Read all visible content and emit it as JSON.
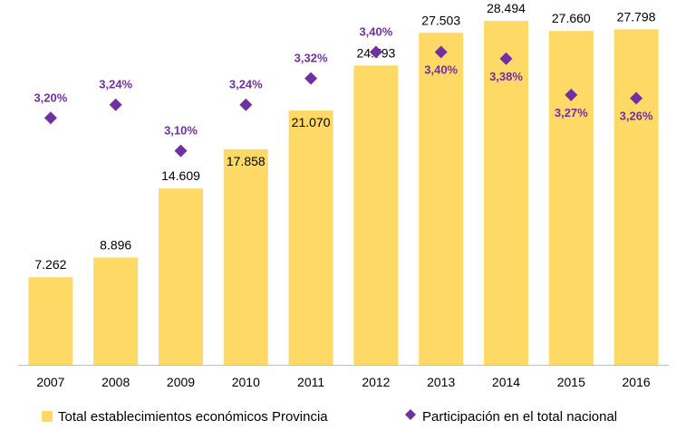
{
  "chart_data": {
    "type": "bar",
    "categories": [
      "2007",
      "2008",
      "2009",
      "2010",
      "2011",
      "2012",
      "2013",
      "2014",
      "2015",
      "2016"
    ],
    "series": [
      {
        "name": "Total establecimientos económicos Provincia",
        "type": "bar",
        "values": [
          7262,
          8896,
          14609,
          17858,
          21070,
          24793,
          27503,
          28494,
          27660,
          27798
        ],
        "labels": [
          "7.262",
          "8.896",
          "14.609",
          "17.858",
          "21.070",
          "24.793",
          "27.503",
          "28.494",
          "27.660",
          "27.798"
        ],
        "color": "#FFD966"
      },
      {
        "name": "Participación en el total nacional",
        "type": "scatter",
        "marker": "diamond",
        "values": [
          3.2,
          3.24,
          3.1,
          3.24,
          3.32,
          3.4,
          3.4,
          3.38,
          3.27,
          3.26
        ],
        "labels": [
          "3,20%",
          "3,24%",
          "3,10%",
          "3,24%",
          "3,32%",
          "3,40%",
          "3,40%",
          "3,38%",
          "3,27%",
          "3,26%"
        ],
        "color": "#7030A0"
      }
    ],
    "ylim": [
      0,
      30000
    ],
    "ylim_secondary": [
      2.45,
      3.55
    ],
    "grid": false,
    "legend": "bottom",
    "title": "",
    "xlabel": "",
    "ylabel": ""
  }
}
